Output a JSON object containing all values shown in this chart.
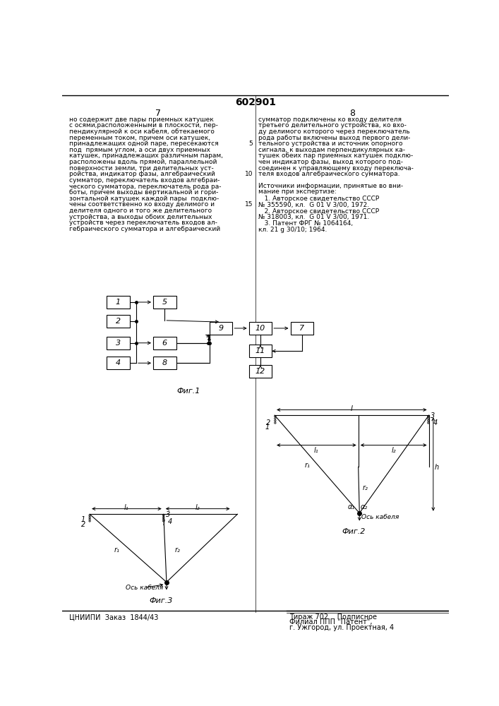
{
  "page_number": "602901",
  "col_left": "7",
  "col_right": "8",
  "background": "#ffffff",
  "text_color": "#000000",
  "fig1_caption": "Фиг.1",
  "fig2_caption": "Фиг.2",
  "fig3_caption": "Фиг.3",
  "footer_left": "ЦНИИПИ  Заказ  1844/43",
  "footer_tirazh": "Тираж 702    Подписное",
  "footer_filial": "Филиал ППП \"Патент\",",
  "footer_addr": "г. Ужгород, ул. Проектная, 4"
}
